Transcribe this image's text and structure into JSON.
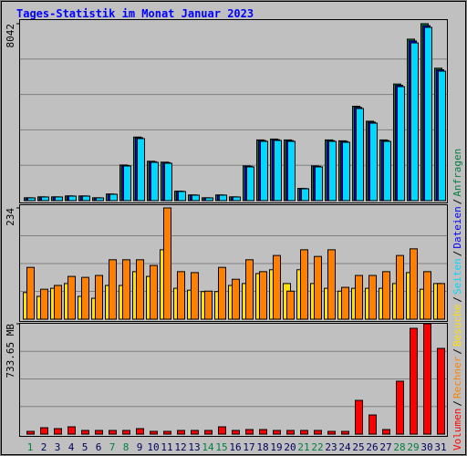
{
  "title": "Tages-Statistik im Monat Januar 2023",
  "legend_separator": "/",
  "chart_data": [
    {
      "type": "bar",
      "ylim": [
        0,
        8042
      ],
      "yticks": [
        8042
      ],
      "series": [
        {
          "name": "Anfragen",
          "color": "#008040",
          "values": [
            130,
            172,
            172,
            215,
            214,
            130,
            301,
            1620,
            2890,
            1790,
            1750,
            430,
            258,
            130,
            258,
            172,
            1580,
            2760,
            2800,
            2760,
            556,
            1580,
            2760,
            2720,
            4290,
            3610,
            2760,
            5300,
            7340,
            8042,
            6020
          ]
        },
        {
          "name": "Dateien",
          "color": "#0000ff",
          "values": [
            128,
            170,
            170,
            212,
            211,
            128,
            296,
            1600,
            2860,
            1770,
            1730,
            425,
            255,
            128,
            255,
            170,
            1560,
            2730,
            2770,
            2730,
            550,
            1560,
            2730,
            2690,
            4240,
            3570,
            2730,
            5240,
            7260,
            7950,
            5950
          ]
        },
        {
          "name": "Seiten",
          "color": "#00d8ff",
          "values": [
            124,
            166,
            166,
            207,
            207,
            124,
            290,
            1575,
            2819,
            1741,
            1700,
            415,
            249,
            124,
            249,
            166,
            1534,
            2694,
            2736,
            2694,
            539,
            1534,
            2694,
            2653,
            4187,
            3523,
            2694,
            5181,
            7171,
            7876,
            5886
          ]
        }
      ]
    },
    {
      "type": "bar",
      "ylim": [
        0,
        234
      ],
      "yticks": [
        234
      ],
      "series": [
        {
          "name": "Besuche",
          "color": "#ffe000",
          "values": [
            56,
            48,
            65,
            75,
            48,
            44,
            71,
            71,
            100,
            90,
            146,
            65,
            61,
            58,
            58,
            71,
            75,
            96,
            104,
            75,
            104,
            75,
            65,
            59,
            65,
            65,
            65,
            75,
            98,
            63,
            75
          ]
        },
        {
          "name": "Rechner",
          "color": "#ff8000",
          "values": [
            109,
            63,
            71,
            90,
            88,
            92,
            125,
            125,
            125,
            113,
            234,
            100,
            98,
            59,
            109,
            84,
            125,
            100,
            134,
            59,
            146,
            132,
            146,
            67,
            92,
            92,
            100,
            134,
            148,
            100,
            75
          ]
        }
      ]
    },
    {
      "type": "bar",
      "ylim": [
        0,
        733.65
      ],
      "yticks": [
        {
          "value": 733.65,
          "label": "733.65 MB"
        }
      ],
      "categories": [
        "1",
        "2",
        "3",
        "4",
        "5",
        "6",
        "7",
        "8",
        "9",
        "10",
        "11",
        "12",
        "13",
        "14",
        "15",
        "16",
        "17",
        "18",
        "19",
        "20",
        "21",
        "22",
        "23",
        "24",
        "25",
        "26",
        "27",
        "28",
        "29",
        "30",
        "31"
      ],
      "category_colors": [
        "#008040",
        "#00005c",
        "#00005c",
        "#00005c",
        "#00005c",
        "#00005c",
        "#008040",
        "#008040",
        "#00005c",
        "#00005c",
        "#00005c",
        "#00005c",
        "#00005c",
        "#008040",
        "#008040",
        "#00005c",
        "#00005c",
        "#00005c",
        "#00005c",
        "#00005c",
        "#008040",
        "#008040",
        "#00005c",
        "#00005c",
        "#00005c",
        "#00005c",
        "#00005c",
        "#008040",
        "#008040",
        "#00005c",
        "#00005c"
      ],
      "series": [
        {
          "name": "Volumen",
          "color": "#ff0000",
          "values": [
            18.2,
            42.4,
            36.4,
            48.5,
            24.3,
            24.3,
            24.3,
            24.3,
            36.4,
            18.2,
            18.2,
            24.3,
            24.3,
            24.3,
            48.5,
            24.3,
            30.3,
            30.3,
            24.3,
            24.3,
            24.3,
            24.3,
            18.2,
            18.2,
            224.3,
            127.3,
            30.3,
            351.7,
            703.3,
            733.65,
            569.9
          ]
        }
      ]
    }
  ]
}
